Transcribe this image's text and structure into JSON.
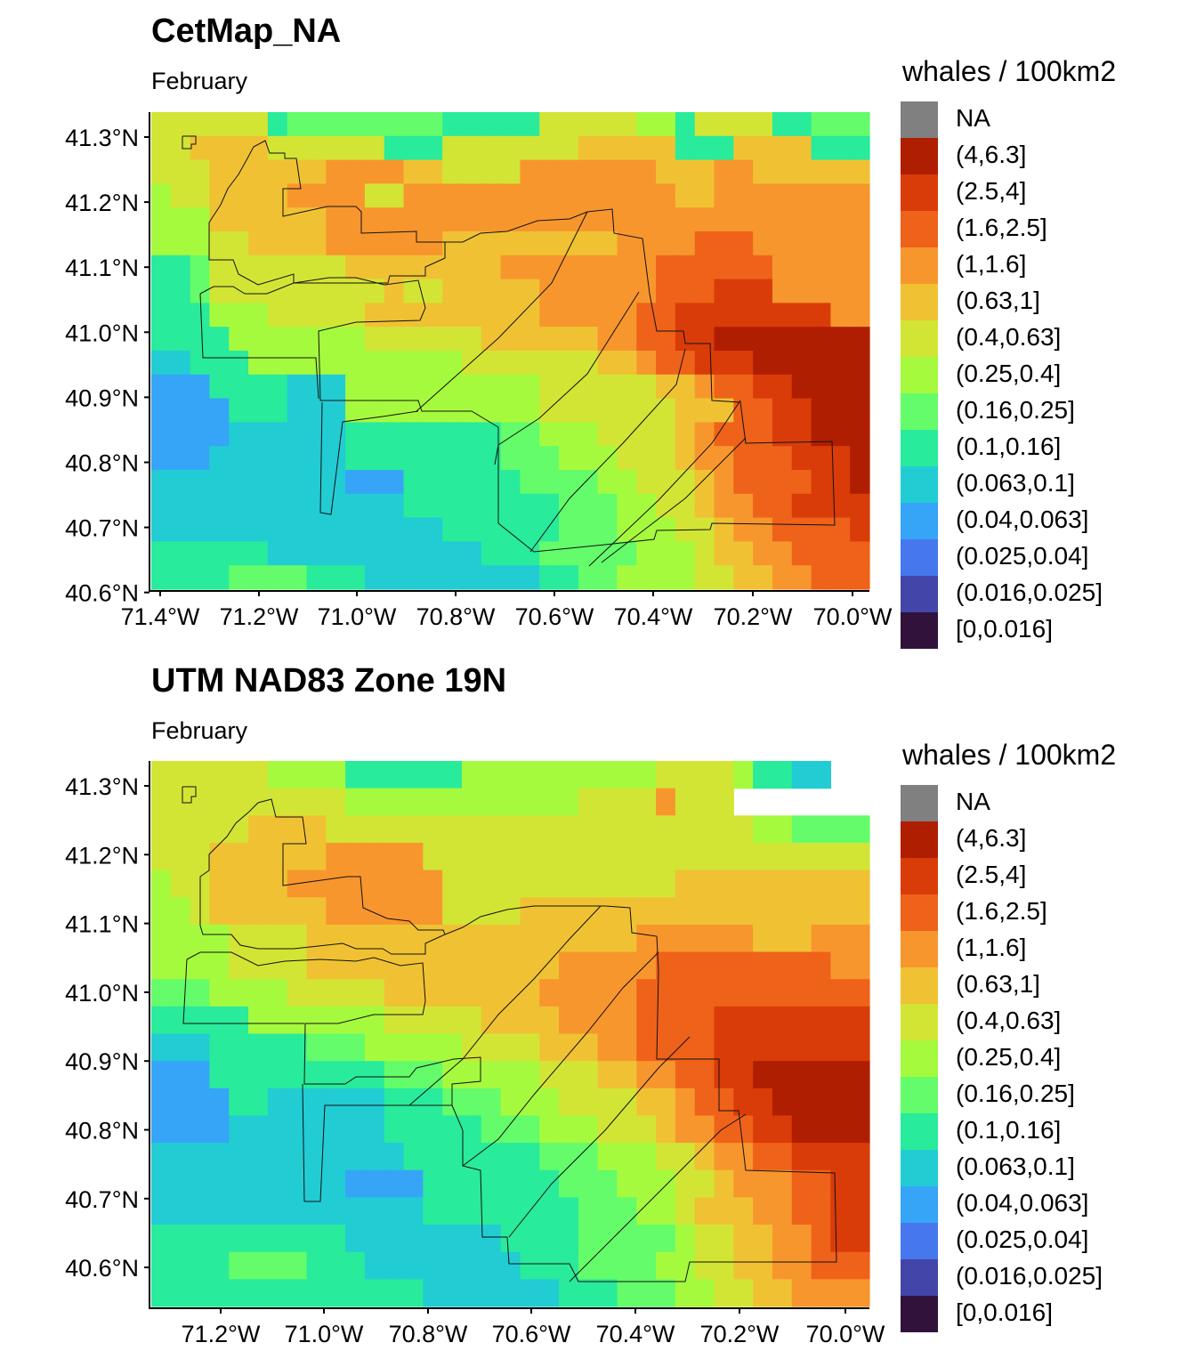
{
  "panels": [
    {
      "title": "CetMap_NA",
      "subtitle": "February",
      "legend_title": "whales / 100km2",
      "y_ticks": [
        "41.3°N",
        "41.2°N",
        "41.1°N",
        "41.0°N",
        "40.9°N",
        "40.8°N",
        "40.7°N",
        "40.6°N"
      ],
      "x_ticks": [
        "71.4°W",
        "71.2°W",
        "71.0°W",
        "70.8°W",
        "70.6°W",
        "70.4°W",
        "70.2°W",
        "70.0°W"
      ]
    },
    {
      "title": "UTM NAD83 Zone 19N",
      "subtitle": "February",
      "legend_title": "whales / 100km2",
      "y_ticks": [
        "41.3°N",
        "41.2°N",
        "41.1°N",
        "41.0°N",
        "40.9°N",
        "40.8°N",
        "40.7°N",
        "40.6°N"
      ],
      "x_ticks": [
        "71.2°W",
        "71.0°W",
        "70.8°W",
        "70.6°W",
        "70.4°W",
        "70.2°W",
        "70.0°W"
      ]
    }
  ],
  "legend": [
    {
      "label": "NA",
      "color": "#808080"
    },
    {
      "label": "(4,6.3]",
      "color": "#B01E02"
    },
    {
      "label": "(2.5,4]",
      "color": "#D93C08"
    },
    {
      "label": "(1.6,2.5]",
      "color": "#EF6219"
    },
    {
      "label": "(1,1.6]",
      "color": "#F8962E"
    },
    {
      "label": "(0.63,1]",
      "color": "#F0C233"
    },
    {
      "label": "(0.4,0.63]",
      "color": "#D2E535"
    },
    {
      "label": "(0.25,0.4]",
      "color": "#A6FA3E"
    },
    {
      "label": "(0.16,0.25]",
      "color": "#64FC6A"
    },
    {
      "label": "(0.1,0.16]",
      "color": "#28EB9B"
    },
    {
      "label": "(0.063,0.1]",
      "color": "#22CCD3"
    },
    {
      "label": "(0.04,0.063]",
      "color": "#36A5F8"
    },
    {
      "label": "(0.025,0.04]",
      "color": "#4777EC"
    },
    {
      "label": "(0.016,0.025]",
      "color": "#4345A8"
    },
    {
      "label": "[0,0.016]",
      "color": "#30123B"
    }
  ]
}
